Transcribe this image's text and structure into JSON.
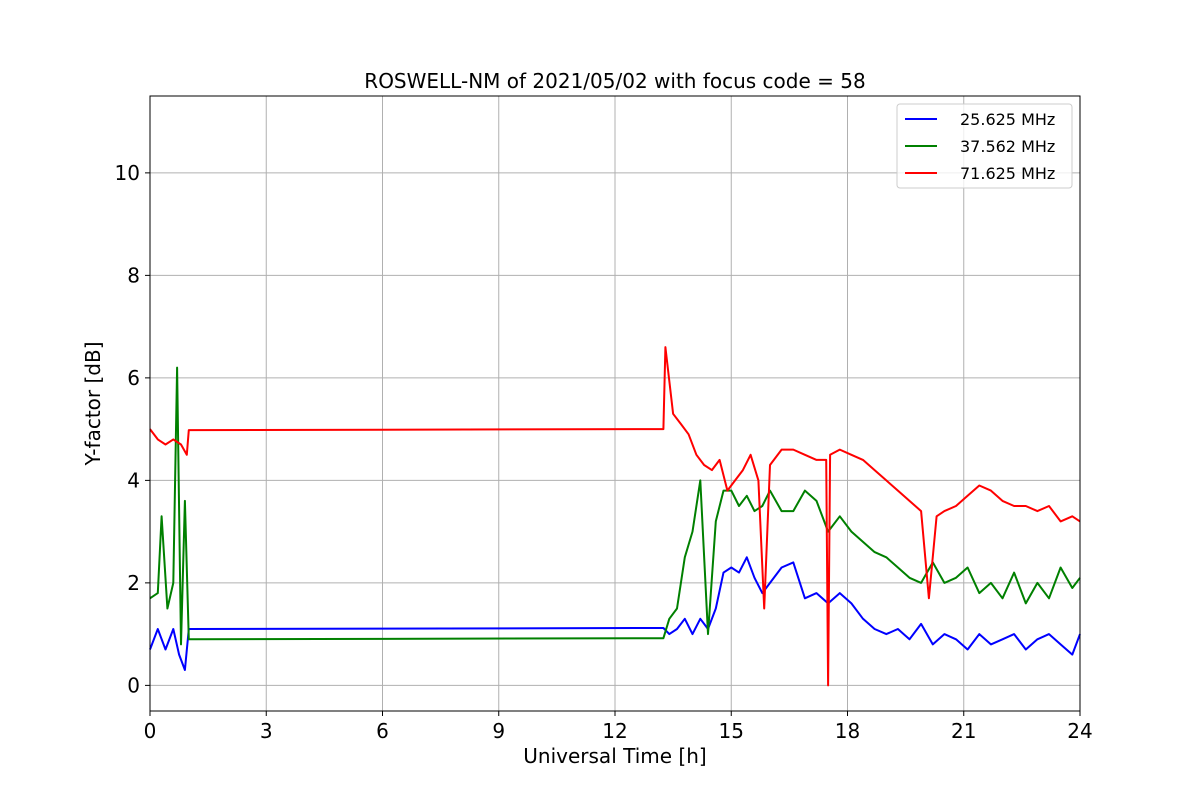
{
  "chart_data": {
    "type": "line",
    "title": "ROSWELL-NM of 2021/05/02 with focus code = 58",
    "xlabel": "Universal Time [h]",
    "ylabel": "Y-factor [dB]",
    "xlim": [
      0,
      24
    ],
    "ylim": [
      -0.5,
      11.5
    ],
    "xticks": [
      0,
      3,
      6,
      9,
      12,
      15,
      18,
      21,
      24
    ],
    "yticks": [
      0,
      2,
      4,
      6,
      8,
      10
    ],
    "xtick_labels": [
      "0",
      "3",
      "6",
      "9",
      "12",
      "15",
      "18",
      "21",
      "24"
    ],
    "ytick_labels": [
      "0",
      "2",
      "4",
      "6",
      "8",
      "10"
    ],
    "grid": true,
    "legend_position": "top-right",
    "series": [
      {
        "name": "25.625 MHz",
        "color": "#0000ff",
        "x": [
          0,
          0.2,
          0.4,
          0.6,
          0.75,
          0.9,
          1.0,
          13.25,
          13.4,
          13.6,
          13.8,
          14.0,
          14.2,
          14.4,
          14.6,
          14.8,
          15.0,
          15.2,
          15.4,
          15.6,
          15.8,
          16.0,
          16.3,
          16.6,
          16.9,
          17.2,
          17.5,
          17.8,
          18.1,
          18.4,
          18.7,
          19.0,
          19.3,
          19.6,
          19.9,
          20.2,
          20.5,
          20.8,
          21.1,
          21.4,
          21.7,
          22.0,
          22.3,
          22.6,
          22.9,
          23.2,
          23.5,
          23.8,
          24.0
        ],
        "y": [
          0.7,
          1.1,
          0.7,
          1.1,
          0.6,
          0.3,
          1.1,
          1.12,
          1.0,
          1.1,
          1.3,
          1.0,
          1.3,
          1.1,
          1.5,
          2.2,
          2.3,
          2.2,
          2.5,
          2.1,
          1.8,
          2.0,
          2.3,
          2.4,
          1.7,
          1.8,
          1.6,
          1.8,
          1.6,
          1.3,
          1.1,
          1.0,
          1.1,
          0.9,
          1.2,
          0.8,
          1.0,
          0.9,
          0.7,
          1.0,
          0.8,
          0.9,
          1.0,
          0.7,
          0.9,
          1.0,
          0.8,
          0.6,
          1.0
        ]
      },
      {
        "name": "37.562 MHz",
        "color": "#008000",
        "x": [
          0,
          0.2,
          0.3,
          0.45,
          0.6,
          0.7,
          0.8,
          0.9,
          1.0,
          13.25,
          13.4,
          13.6,
          13.8,
          14.0,
          14.2,
          14.4,
          14.6,
          14.8,
          15.0,
          15.2,
          15.4,
          15.6,
          15.8,
          16.0,
          16.3,
          16.6,
          16.9,
          17.2,
          17.5,
          17.8,
          18.1,
          18.4,
          18.7,
          19.0,
          19.3,
          19.6,
          19.9,
          20.2,
          20.5,
          20.8,
          21.1,
          21.4,
          21.7,
          22.0,
          22.3,
          22.6,
          22.9,
          23.2,
          23.5,
          23.8,
          24.0
        ],
        "y": [
          1.7,
          1.8,
          3.3,
          1.5,
          2.0,
          6.2,
          0.8,
          3.6,
          0.9,
          0.92,
          1.3,
          1.5,
          2.5,
          3.0,
          4.0,
          1.0,
          3.2,
          3.8,
          3.8,
          3.5,
          3.7,
          3.4,
          3.5,
          3.8,
          3.4,
          3.4,
          3.8,
          3.6,
          3.0,
          3.3,
          3.0,
          2.8,
          2.6,
          2.5,
          2.3,
          2.1,
          2.0,
          2.4,
          2.0,
          2.1,
          2.3,
          1.8,
          2.0,
          1.7,
          2.2,
          1.6,
          2.0,
          1.7,
          2.3,
          1.9,
          2.1
        ]
      },
      {
        "name": "71.625 MHz",
        "color": "#ff0000",
        "x": [
          0,
          0.2,
          0.4,
          0.6,
          0.8,
          0.95,
          1.0,
          13.25,
          13.3,
          13.5,
          13.7,
          13.9,
          14.1,
          14.3,
          14.5,
          14.7,
          14.9,
          15.1,
          15.3,
          15.5,
          15.7,
          15.85,
          16.0,
          16.3,
          16.6,
          16.9,
          17.2,
          17.45,
          17.5,
          17.55,
          17.8,
          18.1,
          18.4,
          18.7,
          19.0,
          19.3,
          19.6,
          19.9,
          20.1,
          20.3,
          20.5,
          20.8,
          21.1,
          21.4,
          21.7,
          22.0,
          22.3,
          22.6,
          22.9,
          23.2,
          23.5,
          23.8,
          24.0
        ],
        "y": [
          5.0,
          4.8,
          4.7,
          4.8,
          4.7,
          4.5,
          4.98,
          5.0,
          6.6,
          5.3,
          5.1,
          4.9,
          4.5,
          4.3,
          4.2,
          4.4,
          3.8,
          4.0,
          4.2,
          4.5,
          4.0,
          1.5,
          4.3,
          4.6,
          4.6,
          4.5,
          4.4,
          4.4,
          0.0,
          4.5,
          4.6,
          4.5,
          4.4,
          4.2,
          4.0,
          3.8,
          3.6,
          3.4,
          1.7,
          3.3,
          3.4,
          3.5,
          3.7,
          3.9,
          3.8,
          3.6,
          3.5,
          3.5,
          3.4,
          3.5,
          3.2,
          3.3,
          3.2
        ]
      }
    ]
  }
}
